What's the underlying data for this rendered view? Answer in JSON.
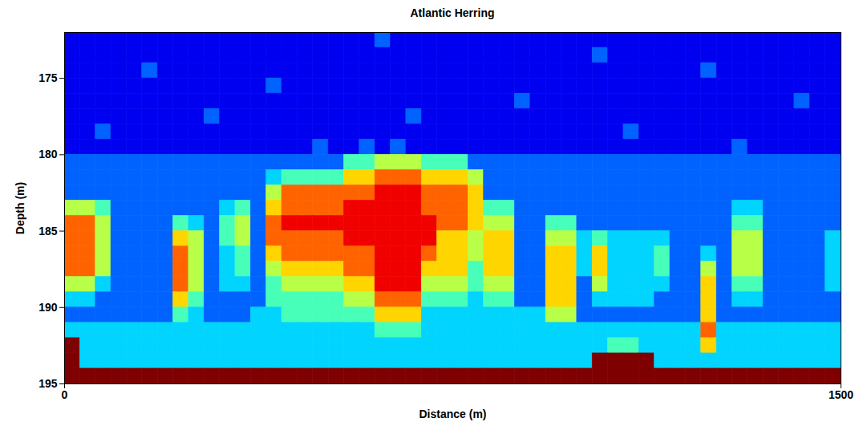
{
  "chart_data": {
    "type": "heatmap",
    "title": "Atlantic Herring",
    "x_label": "Distance (m)",
    "y_label": "Depth (m)",
    "xlim": [
      0,
      1500
    ],
    "xticks": [
      0,
      1500
    ],
    "ylim": [
      195,
      172
    ],
    "yticks": [
      175,
      180,
      185,
      190,
      195
    ],
    "value_range": [
      0,
      9
    ],
    "cells": {
      "x": [
        0,
        30,
        60,
        90,
        120,
        150,
        180,
        210,
        240,
        270,
        300,
        330,
        360,
        390,
        420,
        450,
        480,
        510,
        540,
        570,
        600,
        630,
        660,
        690,
        720,
        750,
        780,
        810,
        840,
        870,
        900,
        930,
        960,
        990,
        1020,
        1050,
        1080,
        1110,
        1140,
        1170,
        1200,
        1230,
        1260,
        1290,
        1320,
        1350,
        1380,
        1410,
        1440,
        1470
      ],
      "y": [
        172,
        173,
        174,
        175,
        176,
        177,
        178,
        179,
        180,
        181,
        182,
        183,
        184,
        185,
        186,
        187,
        188,
        189,
        190,
        191,
        192,
        193,
        194
      ],
      "values": [
        [
          1,
          1,
          1,
          1,
          1,
          1,
          1,
          1,
          1,
          1,
          1,
          1,
          1,
          1,
          1,
          1,
          1,
          1,
          1,
          1,
          2,
          1,
          1,
          1,
          1,
          1,
          1,
          1,
          1,
          1,
          1,
          1,
          1,
          1,
          1,
          1,
          1,
          1,
          1,
          1,
          1,
          1,
          1,
          1,
          1,
          1,
          1,
          1,
          1,
          1
        ],
        [
          1,
          1,
          1,
          1,
          1,
          1,
          1,
          1,
          1,
          1,
          1,
          1,
          1,
          1,
          1,
          1,
          1,
          1,
          1,
          1,
          1,
          1,
          1,
          1,
          1,
          1,
          1,
          1,
          1,
          1,
          1,
          1,
          1,
          1,
          2,
          1,
          1,
          1,
          1,
          1,
          1,
          1,
          1,
          1,
          1,
          1,
          1,
          1,
          1,
          1
        ],
        [
          1,
          1,
          1,
          1,
          1,
          2,
          1,
          1,
          1,
          1,
          1,
          1,
          1,
          1,
          1,
          1,
          1,
          1,
          1,
          1,
          1,
          1,
          1,
          1,
          1,
          1,
          1,
          1,
          1,
          1,
          1,
          1,
          1,
          1,
          1,
          1,
          1,
          1,
          1,
          1,
          1,
          2,
          1,
          1,
          1,
          1,
          1,
          1,
          1,
          1
        ],
        [
          1,
          1,
          1,
          1,
          1,
          1,
          1,
          1,
          1,
          1,
          1,
          1,
          1,
          2,
          1,
          1,
          1,
          1,
          1,
          1,
          1,
          1,
          1,
          1,
          1,
          1,
          1,
          1,
          1,
          1,
          1,
          1,
          1,
          1,
          1,
          1,
          1,
          1,
          1,
          1,
          1,
          1,
          1,
          1,
          1,
          1,
          1,
          1,
          1,
          1
        ],
        [
          1,
          1,
          1,
          1,
          1,
          1,
          1,
          1,
          1,
          1,
          1,
          1,
          1,
          1,
          1,
          1,
          1,
          1,
          1,
          1,
          1,
          1,
          1,
          1,
          1,
          1,
          1,
          1,
          1,
          2,
          1,
          1,
          1,
          1,
          1,
          1,
          1,
          1,
          1,
          1,
          1,
          1,
          1,
          1,
          1,
          1,
          1,
          2,
          1,
          1
        ],
        [
          1,
          1,
          1,
          1,
          1,
          1,
          1,
          1,
          1,
          2,
          1,
          1,
          1,
          1,
          1,
          1,
          1,
          1,
          1,
          1,
          1,
          1,
          2,
          1,
          1,
          1,
          1,
          1,
          1,
          1,
          1,
          1,
          1,
          1,
          1,
          1,
          1,
          1,
          1,
          1,
          1,
          1,
          1,
          1,
          1,
          1,
          1,
          1,
          1,
          1
        ],
        [
          1,
          1,
          2,
          1,
          1,
          1,
          1,
          1,
          1,
          1,
          1,
          1,
          1,
          1,
          1,
          1,
          1,
          1,
          1,
          1,
          1,
          1,
          1,
          1,
          1,
          1,
          1,
          1,
          1,
          1,
          1,
          1,
          1,
          1,
          1,
          1,
          2,
          1,
          1,
          1,
          1,
          1,
          1,
          1,
          1,
          1,
          1,
          1,
          1,
          1
        ],
        [
          1,
          1,
          1,
          1,
          1,
          1,
          1,
          1,
          1,
          1,
          1,
          1,
          1,
          1,
          1,
          1,
          2,
          1,
          1,
          2,
          1,
          2,
          1,
          1,
          1,
          1,
          1,
          1,
          1,
          1,
          1,
          1,
          1,
          1,
          1,
          1,
          1,
          1,
          1,
          1,
          1,
          1,
          1,
          2,
          1,
          1,
          1,
          1,
          1,
          1
        ],
        [
          2,
          2,
          2,
          2,
          2,
          2,
          2,
          2,
          2,
          2,
          2,
          2,
          2,
          2,
          2,
          2,
          2,
          2,
          4,
          4,
          5,
          5,
          5,
          4,
          4,
          4,
          2,
          2,
          2,
          2,
          2,
          2,
          2,
          2,
          2,
          2,
          2,
          2,
          2,
          2,
          2,
          2,
          2,
          2,
          2,
          2,
          2,
          2,
          2,
          2
        ],
        [
          2,
          2,
          2,
          2,
          2,
          2,
          2,
          2,
          2,
          2,
          2,
          2,
          2,
          3,
          4,
          4,
          4,
          4,
          6,
          6,
          7,
          7,
          7,
          6,
          6,
          6,
          5,
          2,
          2,
          2,
          2,
          2,
          2,
          2,
          2,
          2,
          2,
          2,
          2,
          2,
          2,
          2,
          2,
          2,
          2,
          2,
          2,
          2,
          2,
          2
        ],
        [
          2,
          2,
          2,
          2,
          2,
          2,
          2,
          2,
          2,
          2,
          2,
          2,
          2,
          5,
          7,
          7,
          7,
          7,
          7,
          7,
          8,
          8,
          8,
          7,
          7,
          7,
          6,
          2,
          2,
          2,
          2,
          2,
          2,
          2,
          2,
          2,
          2,
          2,
          2,
          2,
          2,
          2,
          2,
          2,
          2,
          2,
          2,
          2,
          2,
          2
        ],
        [
          5,
          5,
          4,
          2,
          2,
          2,
          2,
          2,
          2,
          2,
          3,
          4,
          2,
          6,
          7,
          7,
          7,
          7,
          8,
          8,
          8,
          8,
          8,
          7,
          7,
          7,
          6,
          4,
          4,
          2,
          2,
          2,
          2,
          2,
          2,
          2,
          2,
          2,
          2,
          2,
          2,
          2,
          2,
          3,
          3,
          2,
          2,
          2,
          2,
          2
        ],
        [
          7,
          7,
          5,
          2,
          2,
          2,
          2,
          4,
          3,
          2,
          4,
          5,
          2,
          7,
          8,
          8,
          8,
          8,
          8,
          8,
          8,
          8,
          8,
          8,
          7,
          7,
          6,
          5,
          5,
          2,
          2,
          4,
          4,
          2,
          2,
          2,
          2,
          2,
          2,
          2,
          2,
          2,
          2,
          4,
          4,
          2,
          2,
          2,
          2,
          2
        ],
        [
          7,
          7,
          5,
          2,
          2,
          2,
          2,
          6,
          5,
          2,
          4,
          5,
          2,
          7,
          7,
          7,
          7,
          7,
          8,
          8,
          8,
          8,
          8,
          8,
          6,
          6,
          5,
          6,
          6,
          2,
          2,
          5,
          5,
          3,
          4,
          3,
          3,
          3,
          3,
          2,
          2,
          2,
          2,
          5,
          5,
          2,
          2,
          2,
          2,
          3
        ],
        [
          7,
          7,
          5,
          2,
          2,
          2,
          2,
          7,
          5,
          2,
          3,
          4,
          2,
          6,
          7,
          7,
          7,
          7,
          7,
          7,
          8,
          8,
          8,
          7,
          6,
          6,
          5,
          6,
          6,
          2,
          2,
          6,
          6,
          3,
          6,
          3,
          3,
          3,
          4,
          2,
          2,
          3,
          2,
          5,
          5,
          2,
          2,
          2,
          2,
          3
        ],
        [
          7,
          7,
          5,
          2,
          2,
          2,
          2,
          7,
          5,
          2,
          3,
          4,
          2,
          5,
          6,
          6,
          6,
          6,
          7,
          7,
          8,
          8,
          8,
          6,
          6,
          6,
          4,
          6,
          6,
          2,
          2,
          6,
          6,
          3,
          6,
          3,
          3,
          3,
          4,
          2,
          2,
          5,
          2,
          5,
          5,
          2,
          2,
          2,
          2,
          3
        ],
        [
          5,
          5,
          3,
          2,
          2,
          2,
          2,
          7,
          5,
          2,
          3,
          3,
          2,
          4,
          5,
          5,
          5,
          5,
          6,
          6,
          8,
          8,
          8,
          5,
          5,
          5,
          4,
          5,
          5,
          2,
          2,
          6,
          6,
          2,
          5,
          3,
          3,
          3,
          3,
          2,
          2,
          6,
          2,
          4,
          4,
          2,
          2,
          2,
          2,
          3
        ],
        [
          3,
          3,
          2,
          2,
          2,
          2,
          2,
          6,
          4,
          2,
          2,
          2,
          2,
          4,
          4,
          4,
          4,
          4,
          5,
          5,
          7,
          7,
          7,
          4,
          4,
          4,
          3,
          4,
          4,
          2,
          2,
          6,
          6,
          2,
          3,
          3,
          3,
          3,
          2,
          2,
          2,
          6,
          2,
          3,
          3,
          2,
          2,
          2,
          2,
          2
        ],
        [
          2,
          2,
          2,
          2,
          2,
          2,
          2,
          4,
          3,
          2,
          2,
          2,
          3,
          3,
          4,
          4,
          4,
          4,
          4,
          4,
          6,
          6,
          6,
          3,
          3,
          3,
          3,
          3,
          3,
          3,
          3,
          5,
          5,
          2,
          2,
          2,
          2,
          2,
          2,
          2,
          2,
          6,
          2,
          2,
          2,
          2,
          2,
          2,
          2,
          2
        ],
        [
          3,
          3,
          3,
          3,
          3,
          3,
          3,
          3,
          3,
          3,
          3,
          3,
          3,
          3,
          3,
          3,
          3,
          3,
          3,
          3,
          4,
          4,
          4,
          3,
          3,
          3,
          3,
          3,
          3,
          3,
          3,
          3,
          3,
          3,
          3,
          3,
          3,
          3,
          3,
          3,
          3,
          7,
          3,
          3,
          3,
          3,
          3,
          3,
          3,
          3
        ],
        [
          9,
          3,
          3,
          3,
          3,
          3,
          3,
          3,
          3,
          3,
          3,
          3,
          3,
          3,
          3,
          3,
          3,
          3,
          3,
          3,
          3,
          3,
          3,
          3,
          3,
          3,
          3,
          3,
          3,
          3,
          3,
          3,
          3,
          3,
          3,
          4,
          4,
          3,
          3,
          3,
          3,
          6,
          3,
          3,
          3,
          3,
          3,
          3,
          3,
          3
        ],
        [
          9,
          3,
          3,
          3,
          3,
          3,
          3,
          3,
          3,
          3,
          3,
          3,
          3,
          3,
          3,
          3,
          3,
          3,
          3,
          3,
          3,
          3,
          3,
          3,
          3,
          3,
          3,
          3,
          3,
          3,
          3,
          3,
          3,
          3,
          9,
          9,
          9,
          9,
          3,
          3,
          3,
          3,
          3,
          3,
          3,
          3,
          3,
          3,
          3,
          3
        ],
        [
          9,
          9,
          9,
          9,
          9,
          9,
          9,
          9,
          9,
          9,
          9,
          9,
          9,
          9,
          9,
          9,
          9,
          9,
          9,
          9,
          9,
          9,
          9,
          9,
          9,
          9,
          9,
          9,
          9,
          9,
          9,
          9,
          9,
          9,
          9,
          9,
          9,
          9,
          9,
          9,
          9,
          9,
          9,
          9,
          9,
          9,
          9,
          9,
          9,
          9
        ]
      ]
    }
  }
}
